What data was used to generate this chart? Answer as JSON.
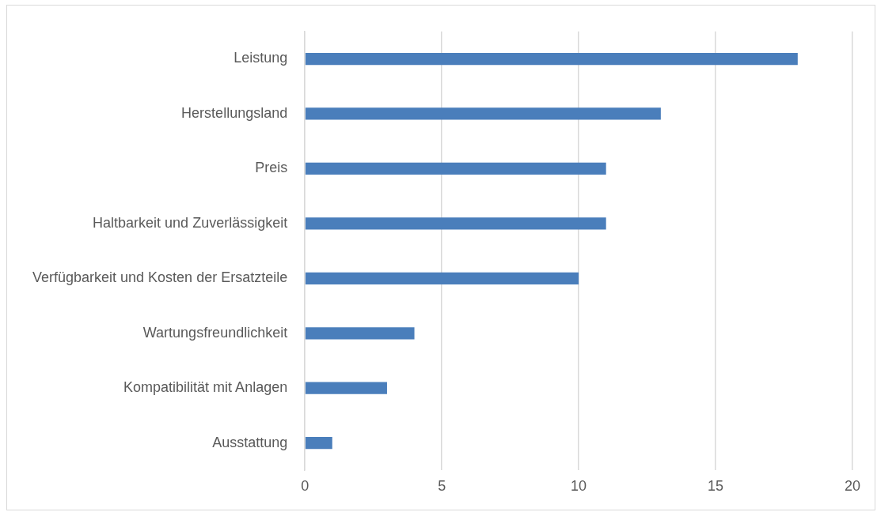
{
  "chart_data": {
    "type": "bar",
    "orientation": "horizontal",
    "categories": [
      "Leistung",
      "Herstellungsland",
      "Preis",
      "Haltbarkeit und Zuverlässigkeit",
      "Verfügbarkeit und Kosten der Ersatzteile",
      "Wartungsfreundlichkeit",
      "Kompatibilität mit Anlagen",
      "Ausstattung"
    ],
    "values": [
      18,
      13,
      11,
      11,
      10,
      4,
      3,
      1
    ],
    "color": "#4a7ebb",
    "xlim": [
      0,
      20
    ],
    "xticks": [
      0,
      5,
      10,
      15,
      20
    ],
    "grid": "x"
  }
}
